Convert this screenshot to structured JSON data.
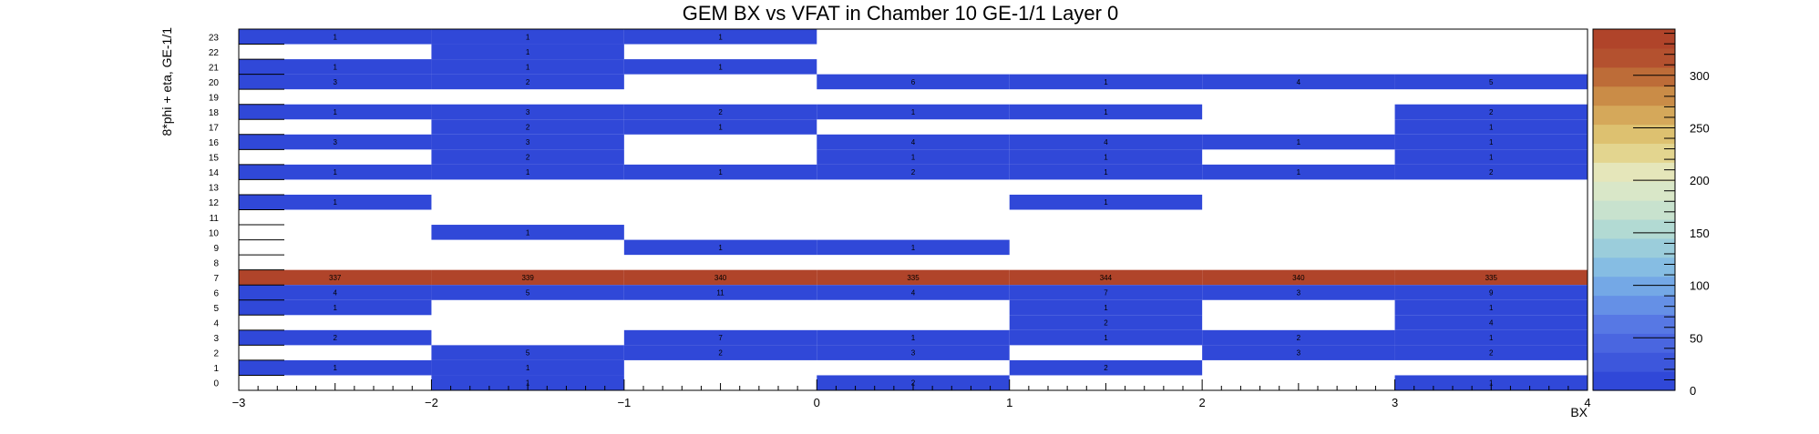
{
  "chart_data": {
    "type": "heatmap",
    "title": "GEM BX vs VFAT in Chamber 10 GE-1/1 Layer 0",
    "xlabel": "BX",
    "ylabel": "8*phi + eta, GE-1/1",
    "xlim": [
      -3,
      4
    ],
    "x_ticks": [
      "−3",
      "−2",
      "−1",
      "0",
      "1",
      "2",
      "3",
      "4"
    ],
    "y_ticks": [
      "0",
      "1",
      "2",
      "3",
      "4",
      "5",
      "6",
      "7",
      "8",
      "9",
      "10",
      "11",
      "12",
      "13",
      "14",
      "15",
      "16",
      "17",
      "18",
      "19",
      "20",
      "21",
      "22",
      "23"
    ],
    "x_bins": [
      -2.5,
      -1.5,
      -0.5,
      0.5,
      1.5,
      2.5,
      3.5
    ],
    "cells": [
      [
        -2.5,
        23,
        1
      ],
      [
        -1.5,
        23,
        1
      ],
      [
        -0.5,
        23,
        1
      ],
      [
        -1.5,
        22,
        1
      ],
      [
        -2.5,
        21,
        1
      ],
      [
        -1.5,
        21,
        1
      ],
      [
        -0.5,
        21,
        1
      ],
      [
        -2.5,
        20,
        3
      ],
      [
        -1.5,
        20,
        2
      ],
      [
        0.5,
        20,
        6
      ],
      [
        1.5,
        20,
        1
      ],
      [
        2.5,
        20,
        4
      ],
      [
        3.5,
        20,
        5
      ],
      [
        -2.5,
        18,
        1
      ],
      [
        -1.5,
        18,
        3
      ],
      [
        -0.5,
        18,
        2
      ],
      [
        0.5,
        18,
        1
      ],
      [
        1.5,
        18,
        1
      ],
      [
        3.5,
        18,
        2
      ],
      [
        -1.5,
        17,
        2
      ],
      [
        -0.5,
        17,
        1
      ],
      [
        3.5,
        17,
        1
      ],
      [
        -2.5,
        16,
        3
      ],
      [
        -1.5,
        16,
        3
      ],
      [
        0.5,
        16,
        4
      ],
      [
        1.5,
        16,
        4
      ],
      [
        2.5,
        16,
        1
      ],
      [
        3.5,
        16,
        1
      ],
      [
        -1.5,
        15,
        2
      ],
      [
        0.5,
        15,
        1
      ],
      [
        1.5,
        15,
        1
      ],
      [
        3.5,
        15,
        1
      ],
      [
        -2.5,
        14,
        1
      ],
      [
        -1.5,
        14,
        1
      ],
      [
        -0.5,
        14,
        1
      ],
      [
        0.5,
        14,
        2
      ],
      [
        1.5,
        14,
        1
      ],
      [
        2.5,
        14,
        1
      ],
      [
        3.5,
        14,
        2
      ],
      [
        -2.5,
        12,
        1
      ],
      [
        1.5,
        12,
        1
      ],
      [
        -1.5,
        10,
        1
      ],
      [
        -0.5,
        9,
        1
      ],
      [
        0.5,
        9,
        1
      ],
      [
        -2.5,
        7,
        337
      ],
      [
        -1.5,
        7,
        339
      ],
      [
        -0.5,
        7,
        340
      ],
      [
        0.5,
        7,
        335
      ],
      [
        1.5,
        7,
        344
      ],
      [
        2.5,
        7,
        340
      ],
      [
        3.5,
        7,
        335
      ],
      [
        -2.5,
        6,
        4
      ],
      [
        -1.5,
        6,
        5
      ],
      [
        -0.5,
        6,
        11
      ],
      [
        0.5,
        6,
        4
      ],
      [
        1.5,
        6,
        7
      ],
      [
        2.5,
        6,
        3
      ],
      [
        3.5,
        6,
        9
      ],
      [
        -2.5,
        5,
        1
      ],
      [
        1.5,
        5,
        1
      ],
      [
        3.5,
        5,
        1
      ],
      [
        1.5,
        4,
        2
      ],
      [
        3.5,
        4,
        4
      ],
      [
        -2.5,
        3,
        2
      ],
      [
        -0.5,
        3,
        7
      ],
      [
        0.5,
        3,
        1
      ],
      [
        1.5,
        3,
        1
      ],
      [
        2.5,
        3,
        2
      ],
      [
        3.5,
        3,
        1
      ],
      [
        -1.5,
        2,
        5
      ],
      [
        -0.5,
        2,
        2
      ],
      [
        0.5,
        2,
        3
      ],
      [
        2.5,
        2,
        3
      ],
      [
        3.5,
        2,
        2
      ],
      [
        -2.5,
        1,
        1
      ],
      [
        -1.5,
        1,
        1
      ],
      [
        1.5,
        1,
        2
      ],
      [
        -1.5,
        0,
        1
      ],
      [
        0.5,
        0,
        2
      ],
      [
        3.5,
        0,
        1
      ]
    ],
    "zlim": [
      0,
      344
    ],
    "colorbar_ticks": [
      "0",
      "50",
      "100",
      "150",
      "200",
      "250",
      "300"
    ],
    "colorbar_values": [
      0,
      50,
      100,
      150,
      200,
      250,
      300
    ],
    "colors": {
      "palette": [
        "#3048d8",
        "#3d57dc",
        "#4a66e0",
        "#5778e4",
        "#6590e6",
        "#74a8e6",
        "#86bde3",
        "#9bcddb",
        "#b2dad3",
        "#c8e2ce",
        "#d9e7c8",
        "#e5e6ba",
        "#e3d58f",
        "#ddc170",
        "#d5a85a",
        "#ca8c47",
        "#bd6c38",
        "#b4512f",
        "#b0442a"
      ],
      "grid_line": "#000000"
    },
    "grid": false,
    "colorbar": "right"
  }
}
